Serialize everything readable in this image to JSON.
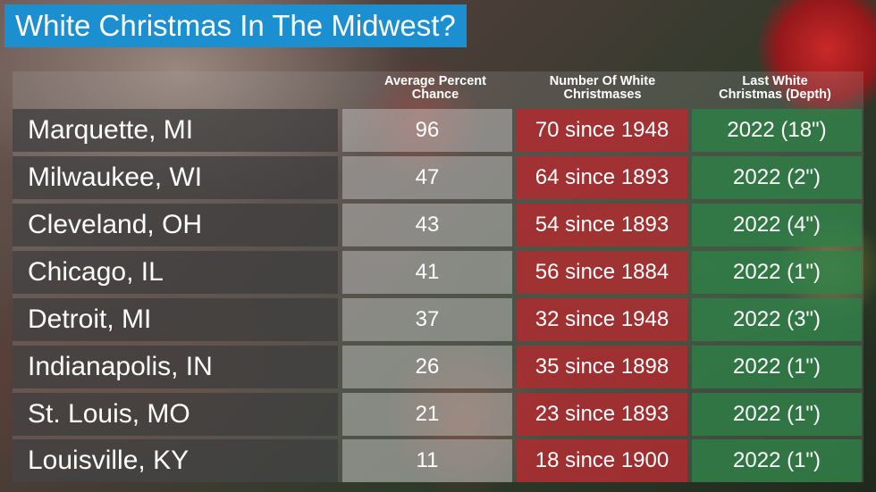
{
  "title": "White Christmas In The Midwest?",
  "columns": {
    "percent": "Average Percent\nChance",
    "count": "Number Of White\nChristmases",
    "last": "Last White\nChristmas (Depth)"
  },
  "rows": [
    {
      "city": "Marquette, MI",
      "percent": "96",
      "count": "70 since 1948",
      "last": "2022 (18\")"
    },
    {
      "city": "Milwaukee, WI",
      "percent": "47",
      "count": "64 since 1893",
      "last": "2022 (2\")"
    },
    {
      "city": "Cleveland, OH",
      "percent": "43",
      "count": "54 since 1893",
      "last": "2022 (4\")"
    },
    {
      "city": "Chicago, IL",
      "percent": "41",
      "count": "56 since 1884",
      "last": "2022 (1\")"
    },
    {
      "city": "Detroit, MI",
      "percent": "37",
      "count": "32 since 1948",
      "last": "2022 (3\")"
    },
    {
      "city": "Indianapolis, IN",
      "percent": "26",
      "count": "35 since 1898",
      "last": "2022 (1\")"
    },
    {
      "city": "St. Louis, MO",
      "percent": "21",
      "count": "23 since 1893",
      "last": "2022 (1\")"
    },
    {
      "city": "Louisville, KY",
      "percent": "11",
      "count": "18 since 1900",
      "last": "2022 (1\")"
    }
  ],
  "colors": {
    "title_bg": "#1c8fd0",
    "count_col": "#b9282d",
    "last_col": "#2d8246",
    "city_col": "#3c3c3c"
  }
}
